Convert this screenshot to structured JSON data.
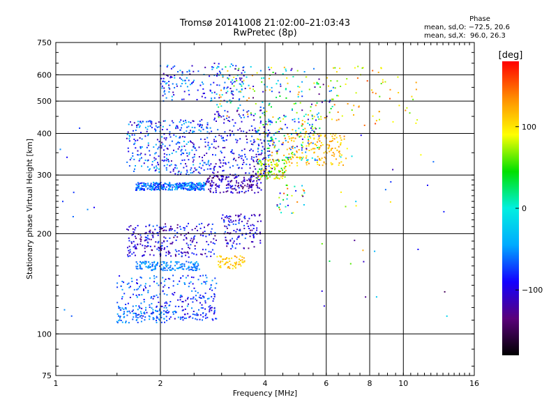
{
  "header": {
    "title": "Tromsø 20141008 21:02:00–21:03:43",
    "subtitle": "RwPretec (8p)"
  },
  "phase_stats": {
    "title": "Phase",
    "line1": "mean, sd,O: −72.5, 20.6",
    "line2": "mean, sd,X:  96.0, 26.3"
  },
  "colorbar": {
    "label": "[deg]",
    "ticks": [
      {
        "value": 100,
        "label": "100"
      },
      {
        "value": 0,
        "label": "0"
      },
      {
        "value": -100,
        "label": "−100"
      }
    ],
    "range": [
      -180,
      180
    ],
    "colormap": [
      "#000000",
      "#5a007a",
      "#1400ff",
      "#00aaff",
      "#00f0e0",
      "#00e000",
      "#ffff00",
      "#ff8c00",
      "#ff0000"
    ]
  },
  "chart_data": {
    "type": "scatter",
    "title": "Tromsø 20141008 21:02:00–21:03:43",
    "subtitle": "RwPretec (8p)",
    "xlabel": "Frequency [MHz]",
    "ylabel": "Stationary phase Virtual Height [km]",
    "x_scale": "log",
    "y_scale": "log",
    "xlim": [
      1,
      16
    ],
    "ylim": [
      75,
      750
    ],
    "x_ticks": [
      1,
      2,
      4,
      6,
      8,
      10,
      16
    ],
    "y_ticks": [
      75,
      100,
      200,
      300,
      400,
      500,
      600,
      750
    ],
    "grid": true,
    "series": [
      {
        "value_key": "phase_deg",
        "clusters": [
          {
            "x": [
              1.7,
              2.7
            ],
            "y": [
              270,
              285
            ],
            "c": [
              -90,
              -30
            ],
            "n": 320
          },
          {
            "x": [
              2.7,
              3.9
            ],
            "y": [
              265,
              300
            ],
            "c": [
              -150,
              -80
            ],
            "n": 170
          },
          {
            "x": [
              3.8,
              4.6
            ],
            "y": [
              292,
              335
            ],
            "c": [
              40,
              140
            ],
            "n": 110
          },
          {
            "x": [
              4.6,
              6.9
            ],
            "y": [
              320,
              400
            ],
            "c": [
              90,
              140
            ],
            "n": 150
          },
          {
            "x": [
              1.6,
              2.8
            ],
            "y": [
              300,
              440
            ],
            "c": [
              -120,
              -30
            ],
            "n": 340
          },
          {
            "x": [
              2.8,
              4.2
            ],
            "y": [
              300,
              470
            ],
            "c": [
              -130,
              -60
            ],
            "n": 220
          },
          {
            "x": [
              3.8,
              5.8
            ],
            "y": [
              330,
              450
            ],
            "c": [
              -120,
              150
            ],
            "n": 170
          },
          {
            "x": [
              2.9,
              6.5
            ],
            "y": [
              440,
              640
            ],
            "c": [
              -140,
              140
            ],
            "n": 190
          },
          {
            "x": [
              2.0,
              3.5
            ],
            "y": [
              500,
              650
            ],
            "c": [
              -120,
              -30
            ],
            "n": 160
          },
          {
            "x": [
              6.2,
              11.0
            ],
            "y": [
              420,
              640
            ],
            "c": [
              60,
              160
            ],
            "n": 60
          },
          {
            "x": [
              1.7,
              2.6
            ],
            "y": [
              155,
              165
            ],
            "c": [
              -70,
              -40
            ],
            "n": 150
          },
          {
            "x": [
              2.9,
              3.5
            ],
            "y": [
              157,
              172
            ],
            "c": [
              95,
              130
            ],
            "n": 60
          },
          {
            "x": [
              1.6,
              2.9
            ],
            "y": [
              170,
              215
            ],
            "c": [
              -140,
              -60
            ],
            "n": 250
          },
          {
            "x": [
              3.0,
              3.9
            ],
            "y": [
              180,
              230
            ],
            "c": [
              -140,
              -60
            ],
            "n": 120
          },
          {
            "x": [
              1.5,
              2.9
            ],
            "y": [
              110,
              150
            ],
            "c": [
              -110,
              -40
            ],
            "n": 230
          },
          {
            "x": [
              1.5,
              2.1
            ],
            "y": [
              108,
              120
            ],
            "c": [
              -80,
              -40
            ],
            "n": 90
          },
          {
            "x": [
              2.3,
              2.9
            ],
            "y": [
              110,
              130
            ],
            "c": [
              -110,
              -60
            ],
            "n": 50
          },
          {
            "x": [
              4.3,
              5.2
            ],
            "y": [
              230,
              280
            ],
            "c": [
              -130,
              170
            ],
            "n": 30
          },
          {
            "x": [
              5.2,
              15.0
            ],
            "y": [
              100,
              400
            ],
            "c": [
              -150,
              130
            ],
            "n": 30
          },
          {
            "x": [
              1.0,
              1.3
            ],
            "y": [
              110,
              600
            ],
            "c": [
              -100,
              -50
            ],
            "n": 10
          }
        ]
      }
    ]
  }
}
